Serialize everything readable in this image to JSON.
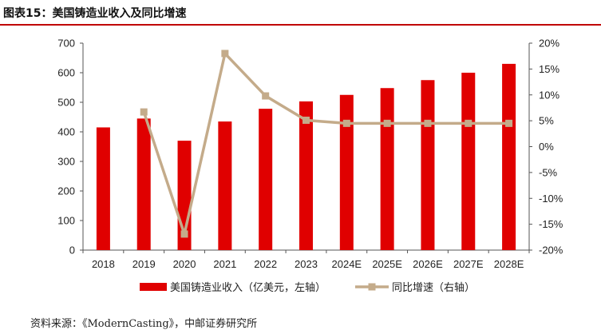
{
  "figure": {
    "title": "图表15：美国铸造业收入及同比增速",
    "source": "资料来源：《ModernCasting》，中邮证券研究所"
  },
  "colors": {
    "bar": "#e00000",
    "line": "#c4ab8a",
    "accent_rule": "#c00000"
  },
  "chart_data": {
    "type": "bar",
    "categories": [
      "2018",
      "2019",
      "2020",
      "2021",
      "2022",
      "2023",
      "2024E",
      "2025E",
      "2026E",
      "2027E",
      "2028E"
    ],
    "series": [
      {
        "name": "美国铸造业收入（亿美元，左轴）",
        "type": "bar",
        "axis": "left",
        "values": [
          415,
          445,
          370,
          435,
          478,
          503,
          525,
          548,
          575,
          600,
          630
        ]
      },
      {
        "name": "同比增速（右轴）",
        "type": "line",
        "axis": "right",
        "values": [
          null,
          6.7,
          -16.9,
          18.0,
          9.8,
          5.1,
          4.5,
          4.5,
          4.5,
          4.5,
          4.5
        ]
      }
    ],
    "left_axis": {
      "min": 0,
      "max": 700,
      "ticks": [
        0,
        100,
        200,
        300,
        400,
        500,
        600,
        700
      ]
    },
    "right_axis": {
      "min": -20,
      "max": 20,
      "ticks": [
        20,
        15,
        10,
        5,
        0,
        -5,
        -10,
        -15,
        -20
      ],
      "tick_labels": [
        "20%",
        "15%",
        "10%",
        "5%",
        "0%",
        "-5%",
        "-10%",
        "-15%",
        "-20%"
      ]
    },
    "legend_position": "bottom",
    "grid": false
  }
}
